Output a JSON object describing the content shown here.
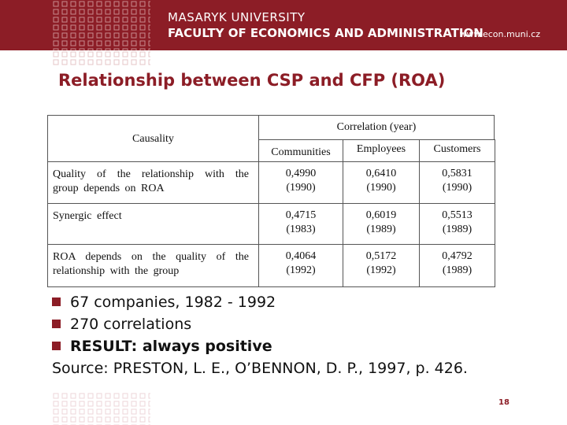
{
  "header": {
    "university": "MASARYK UNIVERSITY",
    "faculty": "FACULTY OF ECONOMICS AND ADMINISTRATION",
    "url": "www.econ.muni.cz"
  },
  "title": "Relationship between CSP and CFP (ROA)",
  "table": {
    "header": {
      "causality": "Causality",
      "correlation": "Correlation (year)",
      "columns": [
        "Communities",
        "Employees",
        "Customers"
      ]
    },
    "rows": [
      {
        "label": "Quality of the relationship with the group depends on ROA",
        "cells": [
          {
            "value": "0,4990",
            "year": "(1990)"
          },
          {
            "value": "0,6410",
            "year": "(1990)"
          },
          {
            "value": "0,5831",
            "year": "(1990)"
          }
        ]
      },
      {
        "label": "Synergic effect",
        "cells": [
          {
            "value": "0,4715",
            "year": "(1983)"
          },
          {
            "value": "0,6019",
            "year": "(1989)"
          },
          {
            "value": "0,5513",
            "year": "(1989)"
          }
        ]
      },
      {
        "label": "ROA depends on the quality of the relationship with the group",
        "cells": [
          {
            "value": "0,4064",
            "year": "(1992)"
          },
          {
            "value": "0,5172",
            "year": "(1992)"
          },
          {
            "value": "0,4792",
            "year": "(1989)"
          }
        ]
      }
    ]
  },
  "bullets": [
    "67 companies, 1982 - 1992",
    "270 correlations",
    "RESULT: always positive"
  ],
  "source": "Source: PRESTON, L. E., O’BENNON, D. P., 1997, p. 426.",
  "page_number": "18"
}
